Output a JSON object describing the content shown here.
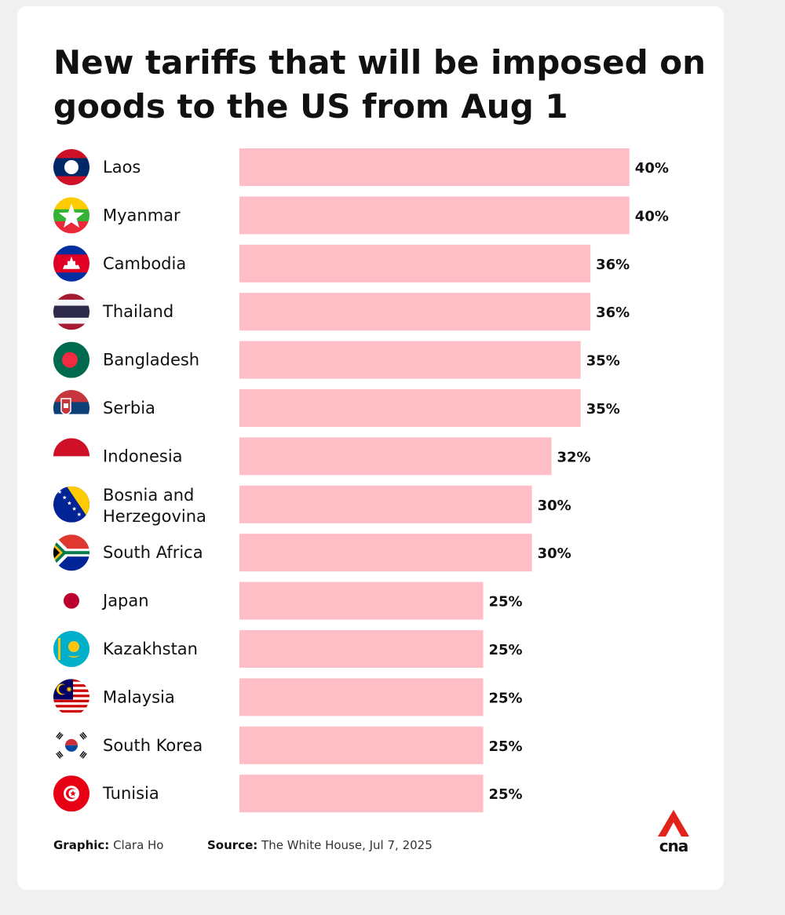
{
  "title": "New tariffs that will be imposed on goods to the US from Aug 1",
  "footer": {
    "graphic_label": "Graphic:",
    "graphic_value": "Clara Ho",
    "source_label": "Source:",
    "source_value": "The White House, Jul 7, 2025"
  },
  "logo": {
    "text": "cna",
    "color": "#e2231a"
  },
  "colors": {
    "bar": "#ffbec6",
    "text": "#111111"
  },
  "chart_data": {
    "type": "bar",
    "orientation": "horizontal",
    "title": "New tariffs that will be imposed on goods to the US from Aug 1",
    "categories": [
      "Laos",
      "Myanmar",
      "Cambodia",
      "Thailand",
      "Bangladesh",
      "Serbia",
      "Indonesia",
      "Bosnia and Herzegovina",
      "South Africa",
      "Japan",
      "Kazakhstan",
      "Malaysia",
      "South Korea",
      "Tunisia"
    ],
    "values": [
      40,
      40,
      36,
      36,
      35,
      35,
      32,
      30,
      30,
      25,
      25,
      25,
      25,
      25
    ],
    "value_labels": [
      "40%",
      "40%",
      "36%",
      "36%",
      "35%",
      "35%",
      "32%",
      "30%",
      "30%",
      "25%",
      "25%",
      "25%",
      "25%",
      "25%"
    ],
    "flag_icons": [
      "laos-flag-icon",
      "myanmar-flag-icon",
      "cambodia-flag-icon",
      "thailand-flag-icon",
      "bangladesh-flag-icon",
      "serbia-flag-icon",
      "indonesia-flag-icon",
      "bosnia-flag-icon",
      "south-africa-flag-icon",
      "japan-flag-icon",
      "kazakhstan-flag-icon",
      "malaysia-flag-icon",
      "south-korea-flag-icon",
      "tunisia-flag-icon"
    ],
    "unit": "%",
    "xlim": [
      0,
      40
    ],
    "grid": false,
    "legend": "none"
  }
}
